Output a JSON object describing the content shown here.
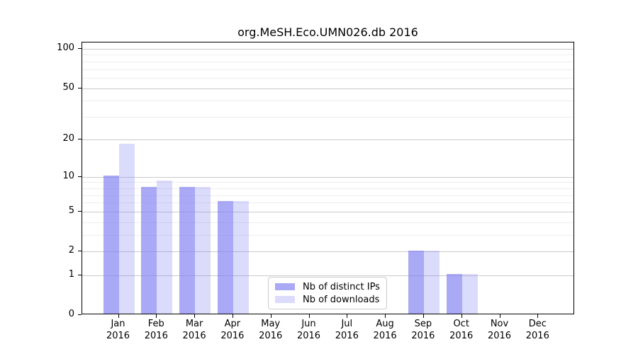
{
  "title": "org.MeSH.Eco.UMN026.db 2016",
  "chart_data": {
    "type": "bar",
    "title": "org.MeSH.Eco.UMN026.db 2016",
    "categories": [
      "Jan",
      "Feb",
      "Mar",
      "Apr",
      "May",
      "Jun",
      "Jul",
      "Aug",
      "Sep",
      "Oct",
      "Nov",
      "Dec"
    ],
    "year_label": "2016",
    "series": [
      {
        "name": "Nb of distinct IPs",
        "values": [
          10,
          8,
          8,
          6,
          0,
          0,
          0,
          0,
          2,
          1,
          0,
          0
        ]
      },
      {
        "name": "Nb of downloads",
        "values": [
          18,
          9,
          8,
          6,
          0,
          0,
          0,
          0,
          2,
          1,
          0,
          0
        ]
      }
    ],
    "yticks": [
      0,
      1,
      2,
      5,
      10,
      20,
      50,
      100
    ],
    "minor_yticks": [
      3,
      4,
      6,
      7,
      8,
      9,
      30,
      40,
      60,
      70,
      80,
      90
    ],
    "scale": "log1p",
    "ylim": [
      0,
      113
    ],
    "grid": true,
    "legend_position": "lower center"
  },
  "colors": {
    "bar_distinct_ips": "#a9a9f5",
    "bar_downloads": "#dcdcfa",
    "bar_distinct_ips_rgba": "rgba(124,124,240,0.66)",
    "bar_downloads_rgba": "rgba(124,124,240,0.28)",
    "grid_major": "#c9c9c9",
    "grid_minor": "#eeeeee",
    "axis": "#000000",
    "legend_border": "#cccccc",
    "background": "#ffffff"
  }
}
